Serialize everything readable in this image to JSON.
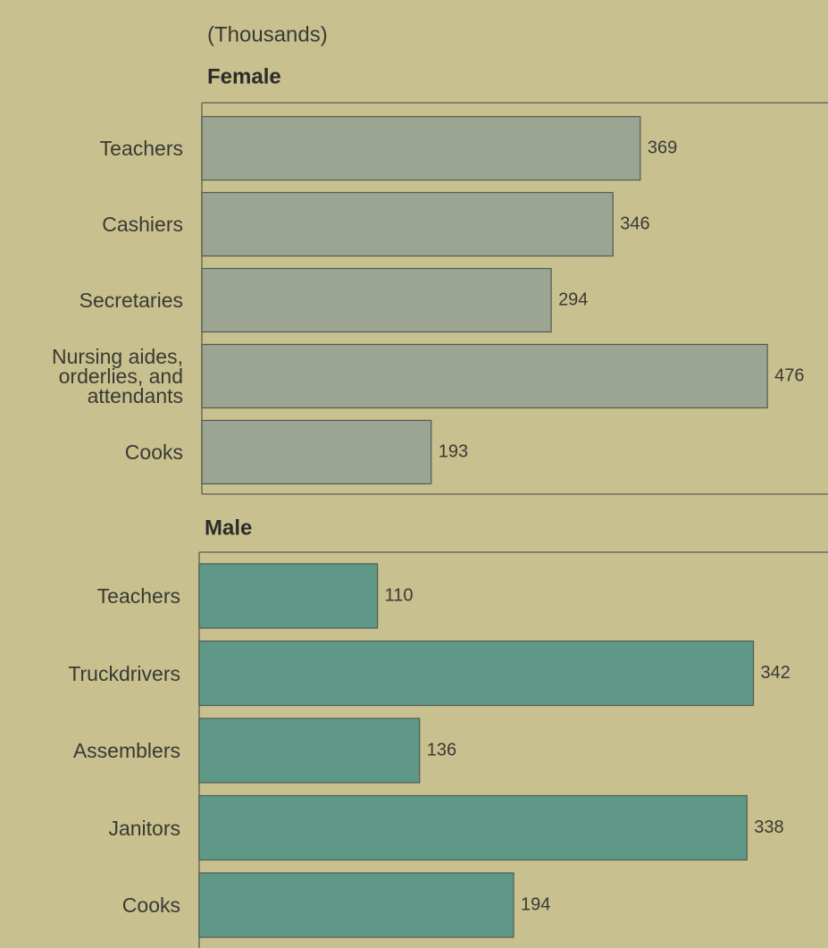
{
  "chart_data": [
    {
      "type": "barh",
      "subtitle": "(Thousands)",
      "title": "Female",
      "categories": [
        "Teachers",
        "Cashiers",
        "Secretaries",
        "Nursing aides, orderlies, and attendants",
        "Cooks"
      ],
      "values": [
        369,
        346,
        294,
        476,
        193
      ],
      "color": "#9ba592",
      "xlim": [
        0,
        527
      ]
    },
    {
      "type": "barh",
      "title": "Male",
      "categories": [
        "Teachers",
        "Truckdrivers",
        "Assemblers",
        "Janitors",
        "Cooks"
      ],
      "values": [
        110,
        342,
        136,
        338,
        194
      ],
      "color": "#5f9886",
      "xlim": [
        0,
        388
      ]
    }
  ]
}
